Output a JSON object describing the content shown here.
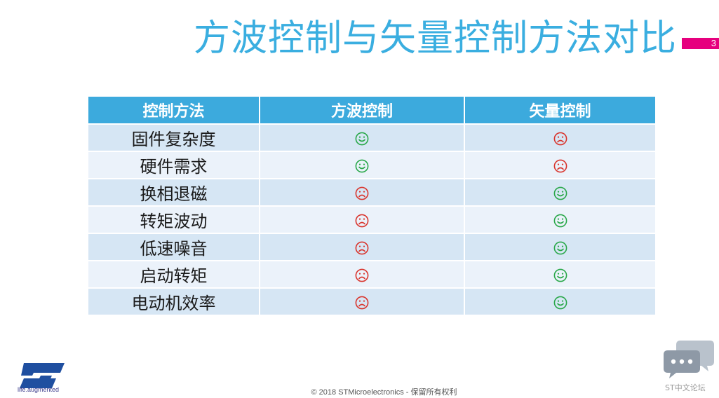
{
  "slide": {
    "title": "方波控制与矢量控制方法对比",
    "page_number": "3"
  },
  "table": {
    "headers": [
      "控制方法",
      "方波控制",
      "矢量控制"
    ],
    "rows": [
      {
        "label": "固件复杂度",
        "square_wave": "happy",
        "vector": "sad"
      },
      {
        "label": "硬件需求",
        "square_wave": "happy",
        "vector": "sad"
      },
      {
        "label": "换相退磁",
        "square_wave": "sad",
        "vector": "happy"
      },
      {
        "label": "转矩波动",
        "square_wave": "sad",
        "vector": "happy"
      },
      {
        "label": "低速噪音",
        "square_wave": "sad",
        "vector": "happy"
      },
      {
        "label": "启动转矩",
        "square_wave": "sad",
        "vector": "happy"
      },
      {
        "label": "电动机效率",
        "square_wave": "sad",
        "vector": "happy"
      }
    ]
  },
  "colors": {
    "happy": "#2aa84a",
    "sad": "#d9352d",
    "title": "#3aaee0",
    "header_bg": "#3caadd",
    "accent": "#e6007e"
  },
  "footer": {
    "logo_tagline": "life.augmented",
    "copyright": "© 2018 STMicroelectronics - 保留所有权利",
    "forum_label": "ST中文论坛"
  }
}
